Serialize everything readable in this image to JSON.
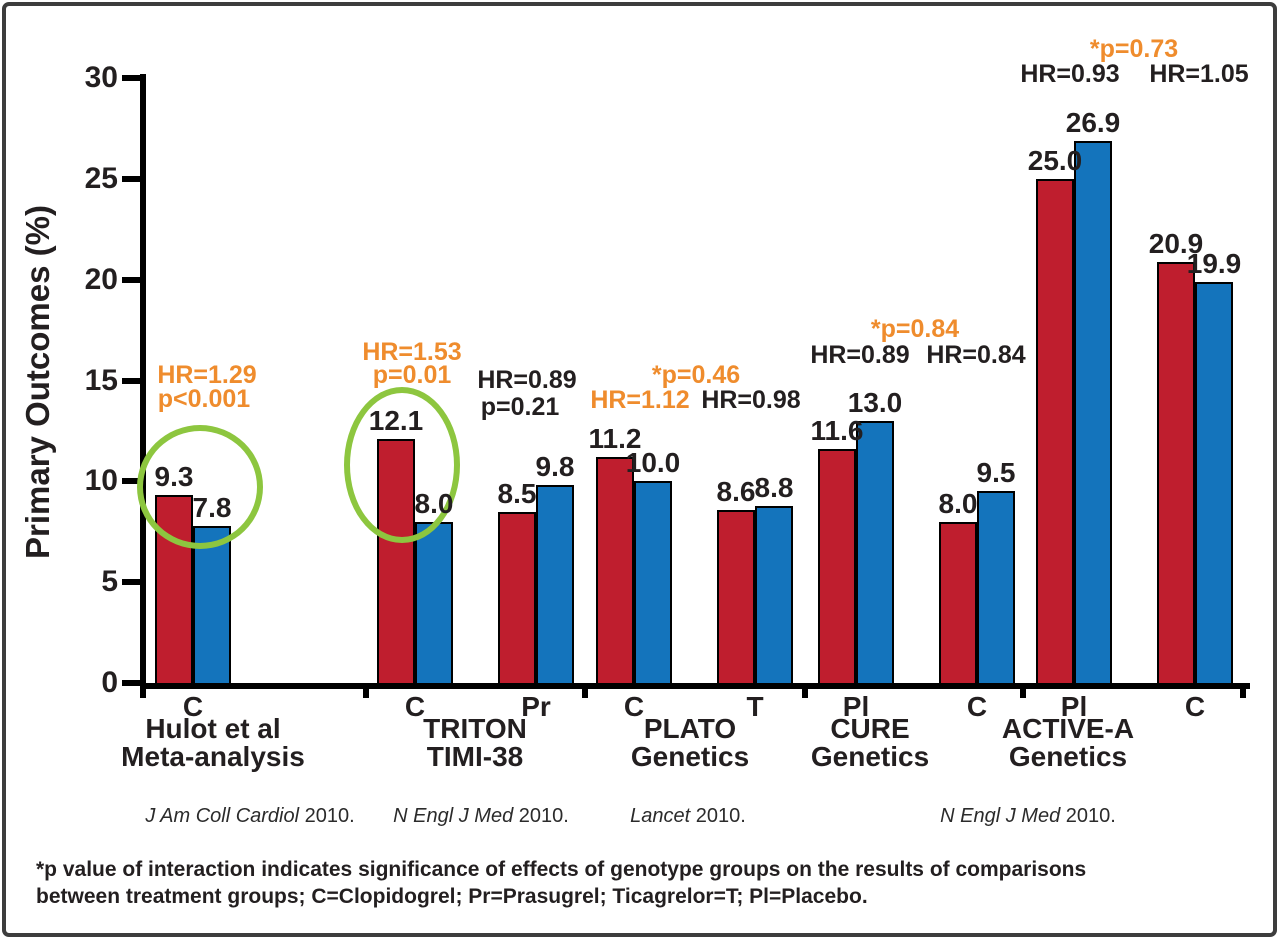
{
  "chart_data": {
    "type": "bar",
    "title": "",
    "ylabel": "Primary Outcomes (%)",
    "xlabel": "",
    "ylim": [
      0,
      30
    ],
    "yticks": [
      0,
      5,
      10,
      15,
      20,
      25,
      30
    ],
    "grid": false,
    "legend": false,
    "bar_colors": {
      "red": "#BF1E2E",
      "blue": "#1474BC"
    },
    "highlight_circle_color": "#8DC63F",
    "annotation_colors": {
      "orange": "#EF8C2D",
      "dark": "#231F20"
    },
    "groups": [
      {
        "study_lines": [
          "Hulot et al",
          "Meta-analysis"
        ],
        "pairs": [
          {
            "label": "C",
            "red": 9.3,
            "blue": 7.8,
            "circled": true
          }
        ]
      },
      {
        "study_lines": [
          "TRITON",
          "TIMI-38"
        ],
        "pairs": [
          {
            "label": "C",
            "red": 12.1,
            "blue": 8.0,
            "circled": true
          },
          {
            "label": "Pr",
            "red": 8.5,
            "blue": 9.8
          }
        ]
      },
      {
        "study_lines": [
          "PLATO",
          "Genetics"
        ],
        "pairs": [
          {
            "label": "C",
            "red": 11.2,
            "blue": 10.0
          },
          {
            "label": "T",
            "red": 8.6,
            "blue": 8.8
          }
        ]
      },
      {
        "study_lines": [
          "CURE",
          "Genetics"
        ],
        "pairs": [
          {
            "label": "Pl",
            "red": 11.6,
            "blue": 13.0
          },
          {
            "label": "C",
            "red": 8.0,
            "blue": 9.5
          }
        ]
      },
      {
        "study_lines": [
          "ACTIVE-A",
          "Genetics"
        ],
        "pairs": [
          {
            "label": "Pl",
            "red": 25.0,
            "blue": 26.9
          },
          {
            "label": "C",
            "red": 20.9,
            "blue": 19.9
          }
        ]
      }
    ],
    "annotations": [
      {
        "text": "HR=1.29",
        "color": "orange"
      },
      {
        "text": "p<0.001",
        "color": "orange"
      },
      {
        "text": "HR=1.53",
        "color": "orange"
      },
      {
        "text": "p=0.01",
        "color": "orange"
      },
      {
        "text": "HR=0.89",
        "color": "dark"
      },
      {
        "text": "p=0.21",
        "color": "dark"
      },
      {
        "text": "*p=0.46",
        "color": "orange"
      },
      {
        "text": "HR=1.12",
        "color": "orange"
      },
      {
        "text": "HR=0.98",
        "color": "dark"
      },
      {
        "text": "*p=0.84",
        "color": "orange"
      },
      {
        "text": "HR=0.89",
        "color": "dark"
      },
      {
        "text": "HR=0.84",
        "color": "dark"
      },
      {
        "text": "*p=0.73",
        "color": "orange"
      },
      {
        "text": "HR=0.93",
        "color": "dark"
      },
      {
        "text": "HR=1.05",
        "color": "dark"
      }
    ],
    "citations": [
      {
        "journal": "J Am Coll Cardiol",
        "year": "2010."
      },
      {
        "journal": "N Engl J Med",
        "year": "2010."
      },
      {
        "journal": "Lancet",
        "year": "2010."
      },
      {
        "journal": "N Engl J Med",
        "year": "2010."
      }
    ]
  },
  "footnote": {
    "line1": "*p value of interaction indicates significance of effects of genotype groups on the results of comparisons",
    "line2": "between treatment groups; C=Clopidogrel; Pr=Prasugrel; Ticagrelor=T; Pl=Placebo."
  }
}
